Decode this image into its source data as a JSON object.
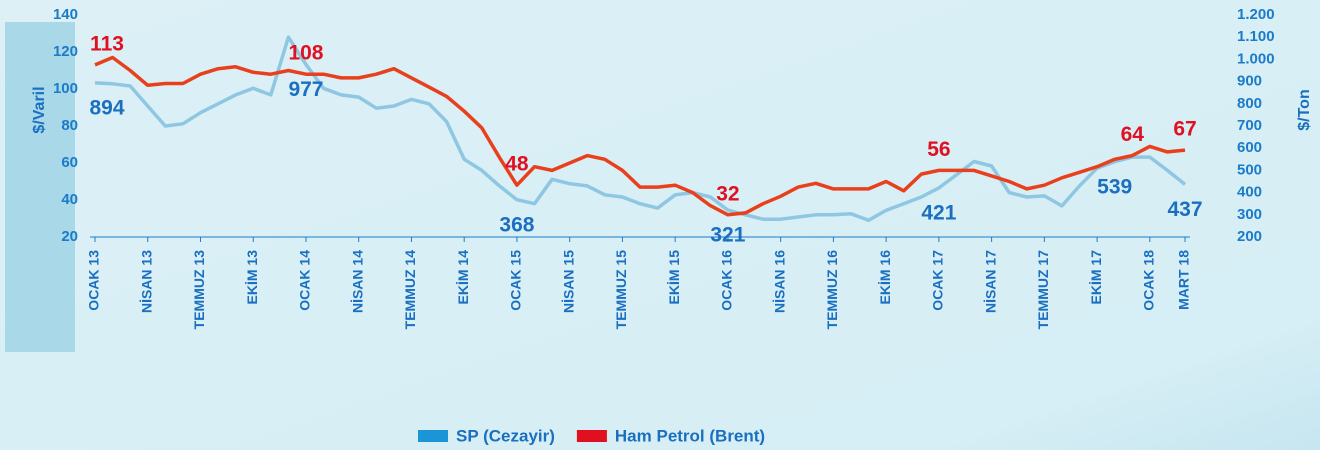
{
  "chart_data": {
    "type": "line",
    "ylabel": "$/Varil",
    "y2label": "$/Ton",
    "categories": [
      "OCAK 13",
      null,
      null,
      "NİSAN 13",
      null,
      null,
      "TEMMUZ 13",
      null,
      null,
      "EKİM 13",
      null,
      null,
      "OCAK 14",
      null,
      null,
      "NİSAN 14",
      null,
      null,
      "TEMMUZ 14",
      null,
      null,
      "EKİM 14",
      null,
      null,
      "OCAK 15",
      null,
      null,
      "NİSAN 15",
      null,
      null,
      "TEMMUZ 15",
      null,
      null,
      "EKİM 15",
      null,
      null,
      "OCAK 16",
      null,
      null,
      "NİSAN 16",
      null,
      null,
      "TEMMUZ 16",
      null,
      null,
      "EKİM 16",
      null,
      null,
      "OCAK 17",
      null,
      null,
      "NİSAN 17",
      null,
      null,
      "TEMMUZ 17",
      null,
      null,
      "EKİM 17",
      null,
      null,
      "OCAK 18",
      null,
      "MART 18"
    ],
    "ylim": [
      20,
      140
    ],
    "yticks": [
      20,
      40,
      60,
      80,
      100,
      120,
      140
    ],
    "y2lim": [
      200,
      1200
    ],
    "y2ticks": [
      200,
      300,
      400,
      500,
      600,
      700,
      800,
      900,
      {
        "value": 1000,
        "label": "1.000"
      },
      {
        "value": 1100,
        "label": "1.100"
      },
      {
        "value": 1200,
        "label": "1.200"
      }
    ],
    "legend": "bottom",
    "series": [
      {
        "name": "SP (Cezayir)",
        "color": "#8fc6e2",
        "label_color": "#1a6fc0",
        "axis": "y2",
        "values": [
          894,
          890,
          880,
          790,
          700,
          710,
          760,
          800,
          840,
          870,
          840,
          1100,
          977,
          870,
          840,
          830,
          780,
          790,
          820,
          800,
          720,
          550,
          500,
          430,
          368,
          350,
          460,
          440,
          430,
          390,
          380,
          350,
          330,
          390,
          400,
          380,
          321,
          300,
          280,
          280,
          290,
          300,
          300,
          305,
          275,
          320,
          350,
          380,
          421,
          480,
          540,
          520,
          400,
          380,
          385,
          340,
          430,
          510,
          539,
          560,
          560,
          500,
          437
        ],
        "value_labels": [
          "894",
          null,
          null,
          null,
          null,
          null,
          null,
          null,
          null,
          null,
          null,
          null,
          "977",
          null,
          null,
          null,
          null,
          null,
          null,
          null,
          null,
          null,
          null,
          null,
          "368",
          null,
          null,
          null,
          null,
          null,
          null,
          null,
          null,
          null,
          null,
          null,
          "321",
          null,
          null,
          null,
          null,
          null,
          null,
          null,
          null,
          null,
          null,
          null,
          "421",
          null,
          null,
          null,
          null,
          null,
          null,
          null,
          null,
          null,
          "539",
          null,
          null,
          null,
          "437"
        ]
      },
      {
        "name": "Ham Petrol (Brent)",
        "color": "#e8401c",
        "label_color": "#e01020",
        "values": [
          113,
          117,
          110,
          102,
          103,
          103,
          108,
          111,
          112,
          109,
          108,
          110,
          108,
          108,
          106,
          106,
          108,
          111,
          106,
          101,
          96,
          88,
          79,
          63,
          48,
          58,
          56,
          60,
          64,
          62,
          56,
          47,
          47,
          48,
          44,
          37,
          32,
          33,
          38,
          42,
          47,
          49,
          46,
          46,
          46,
          50,
          45,
          54,
          56,
          56,
          56,
          53,
          50,
          46,
          48,
          52,
          55,
          58,
          62,
          64,
          69,
          66,
          67
        ],
        "value_labels": [
          "113",
          null,
          null,
          null,
          null,
          null,
          null,
          null,
          null,
          null,
          null,
          null,
          "108",
          null,
          null,
          null,
          null,
          null,
          null,
          null,
          null,
          null,
          null,
          null,
          "48",
          null,
          null,
          null,
          null,
          null,
          null,
          null,
          null,
          null,
          null,
          null,
          "32",
          null,
          null,
          null,
          null,
          null,
          null,
          null,
          null,
          null,
          null,
          null,
          "56",
          null,
          null,
          null,
          null,
          null,
          null,
          null,
          null,
          null,
          null,
          "64",
          null,
          null,
          "67"
        ]
      }
    ]
  }
}
